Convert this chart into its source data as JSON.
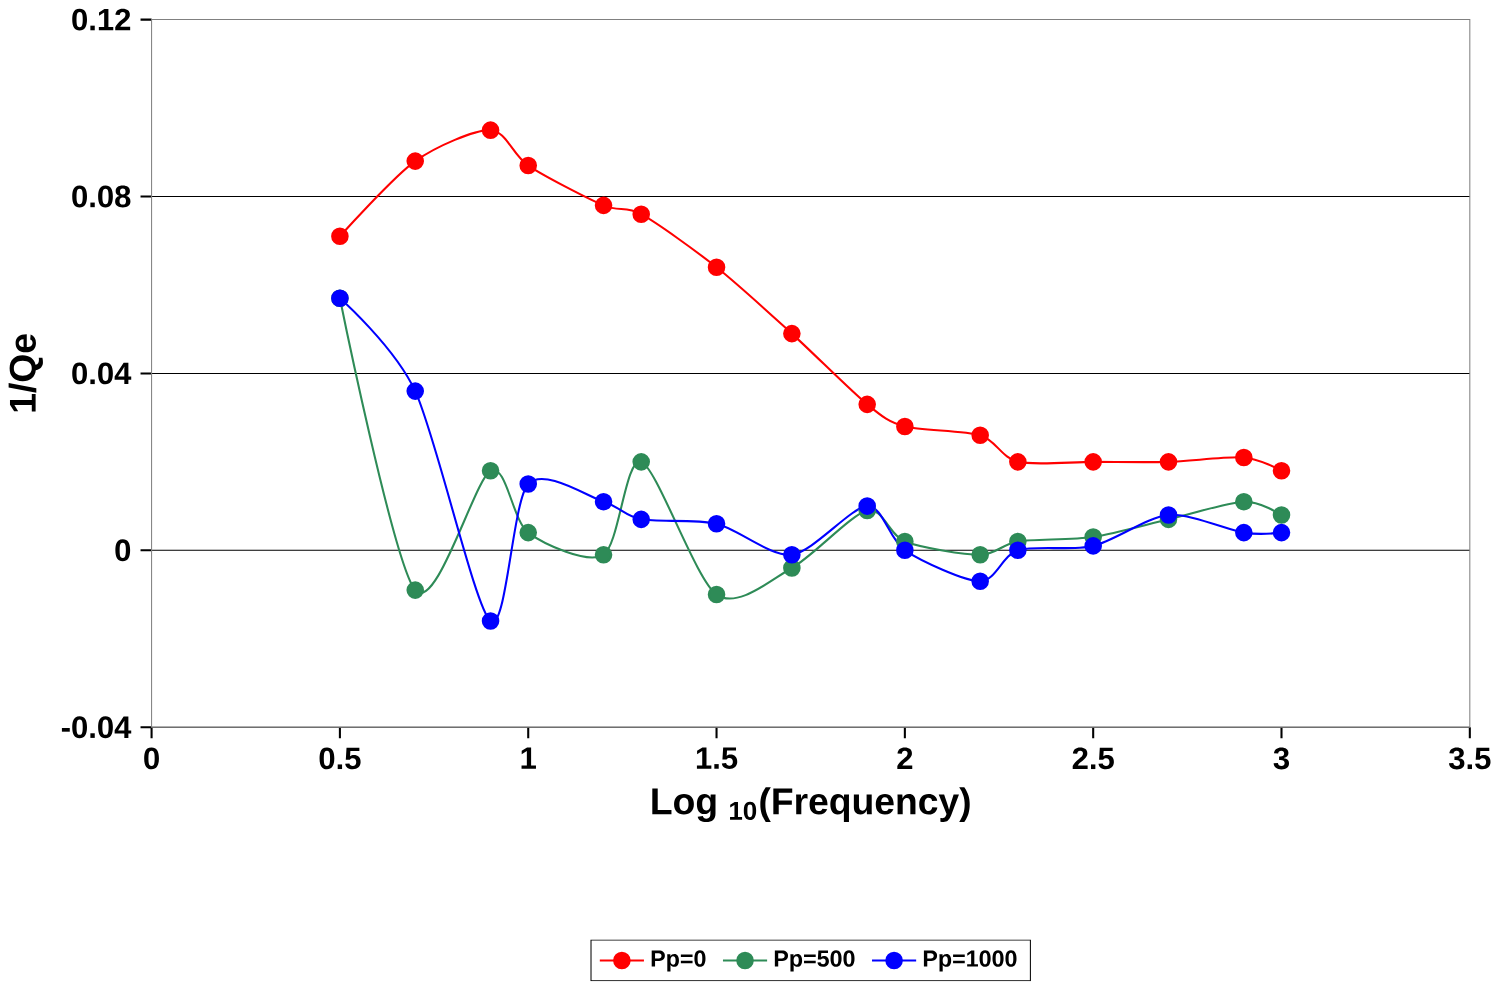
{
  "chart_data": {
    "type": "line",
    "xlabel": "Log $_{10}$(Frequency)",
    "ylabel": "1/Qe",
    "x": [
      0.5,
      0.7,
      0.9,
      1.0,
      1.2,
      1.3,
      1.5,
      1.7,
      1.9,
      2.0,
      2.2,
      2.3,
      2.5,
      2.7,
      2.9,
      3.0
    ],
    "series": [
      {
        "name": "Pp=0",
        "color": "#ff0000",
        "values": [
          0.071,
          0.088,
          0.095,
          0.087,
          0.078,
          0.076,
          0.064,
          0.049,
          0.033,
          0.028,
          0.026,
          0.02,
          0.02,
          0.02,
          0.021,
          0.018
        ]
      },
      {
        "name": "Pp=500",
        "color": "#2e8b57",
        "values": [
          0.057,
          -0.009,
          0.018,
          0.004,
          -0.001,
          0.02,
          -0.01,
          -0.004,
          0.009,
          0.002,
          -0.001,
          0.002,
          0.003,
          0.007,
          0.011,
          0.008
        ]
      },
      {
        "name": "Pp=1000",
        "color": "#0000ff",
        "values": [
          0.057,
          0.036,
          -0.016,
          0.015,
          0.011,
          0.007,
          0.006,
          -0.001,
          0.01,
          0.0,
          -0.007,
          0.0,
          0.001,
          0.008,
          0.004,
          0.004
        ]
      }
    ],
    "xlim": [
      0,
      3.5
    ],
    "xticks": [
      0,
      0.5,
      1,
      1.5,
      2,
      2.5,
      3,
      3.5
    ],
    "ylim": [
      -0.04,
      0.12
    ],
    "yticks": [
      -0.04,
      0,
      0.04,
      0.08,
      0.12
    ],
    "grid": "y",
    "legend": "bottom",
    "marker": "circle",
    "line_style": "solid"
  }
}
